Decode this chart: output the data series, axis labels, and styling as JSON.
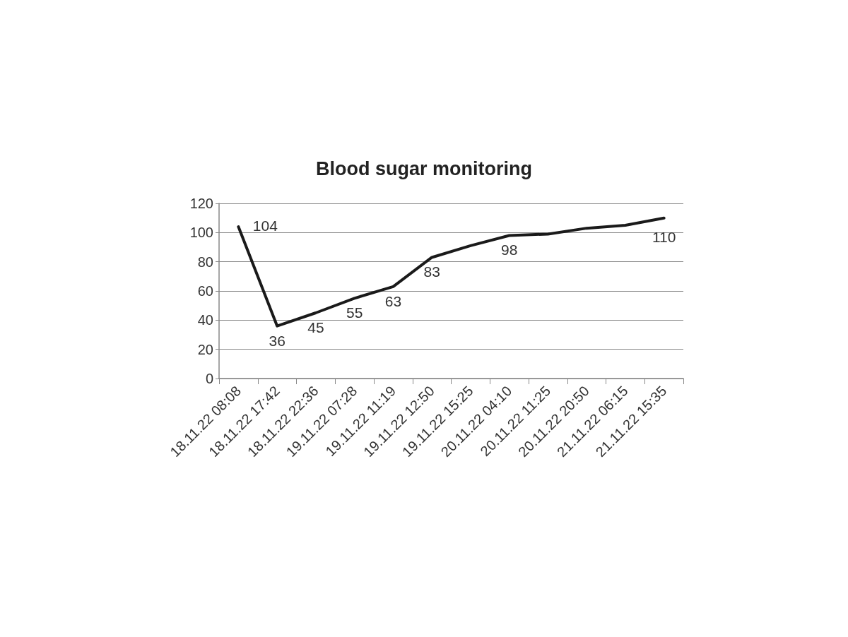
{
  "chart_data": {
    "type": "line",
    "title": "Blood sugar monitoring",
    "categories": [
      "18.11.22 08:08",
      "18.11.22 17:42",
      "18.11.22 22:36",
      "19.11.22 07:28",
      "19.11.22 11:19",
      "19.11.22 12:50",
      "19.11.22 15:25",
      "20.11.22 04:10",
      "20.11.22 11:25",
      "20.11.22 20:50",
      "21.11.22 06:15",
      "21.11.22 15:35"
    ],
    "series": [
      {
        "color": "#1a1a1a",
        "values": [
          104,
          36,
          45,
          55,
          63,
          83,
          91,
          98,
          99,
          103,
          105,
          110
        ],
        "value_labels": [
          "104",
          "36",
          "45",
          "55",
          "63",
          "83",
          null,
          "98",
          null,
          null,
          null,
          "110"
        ]
      }
    ],
    "ylim": [
      0,
      120
    ],
    "yticks": [
      0,
      20,
      40,
      60,
      80,
      100,
      120
    ],
    "grid": "y",
    "marker": "none",
    "line_style": "solid"
  }
}
